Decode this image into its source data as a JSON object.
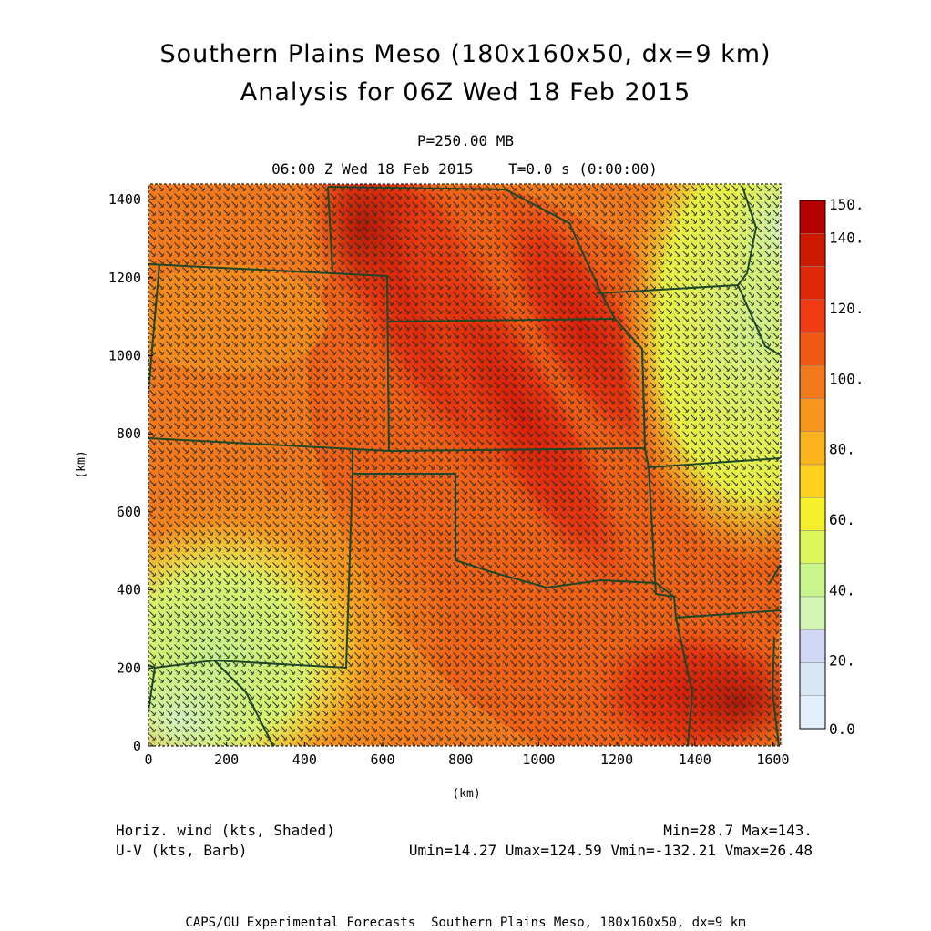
{
  "header": {
    "title_line1": "Southern Plains Meso (180x160x50, dx=9 km)",
    "title_line2": "Analysis for 06Z Wed 18 Feb 2015",
    "pressure_level": "P=250.00 MB",
    "time_line": "06:00 Z Wed 18 Feb 2015    T=0.0 s (0:00:00)"
  },
  "axes": {
    "x_label": "(km)",
    "y_label": "(km)",
    "x_ticks": [
      "0",
      "200",
      "400",
      "600",
      "800",
      "1000",
      "1200",
      "1400",
      "1600"
    ],
    "y_ticks": [
      "0",
      "200",
      "400",
      "600",
      "800",
      "1000",
      "1200",
      "1400"
    ],
    "x_range": [
      0,
      1620
    ],
    "y_range": [
      0,
      1440
    ]
  },
  "colorbar": {
    "labels": [
      "150.",
      "140.",
      "120.",
      "100.",
      "80.",
      "60.",
      "40.",
      "20.",
      "0.0"
    ],
    "colors": [
      "#b40000",
      "#cc1a00",
      "#e0280a",
      "#f03c14",
      "#f05a14",
      "#f27a1c",
      "#f7941e",
      "#fbb41e",
      "#ffd21e",
      "#f5f02a",
      "#dcf55a",
      "#c8f58c",
      "#d2f5b4",
      "#d2d7f5",
      "#d7e6f5",
      "#e1f0fa"
    ]
  },
  "legend": {
    "shaded": "Horiz. wind (kts, Shaded)",
    "barb": "U-V (kts, Barb)",
    "minmax": "Min=28.7 Max=143.",
    "uv_stats": "Umin=14.27 Umax=124.59 Vmin=-132.21 Vmax=26.48"
  },
  "footer": "CAPS/OU Experimental Forecasts  Southern Plains Meso, 180x160x50, dx=9 km",
  "colors": {
    "border": "#1e4628",
    "barb": "#2a2a2a"
  }
}
